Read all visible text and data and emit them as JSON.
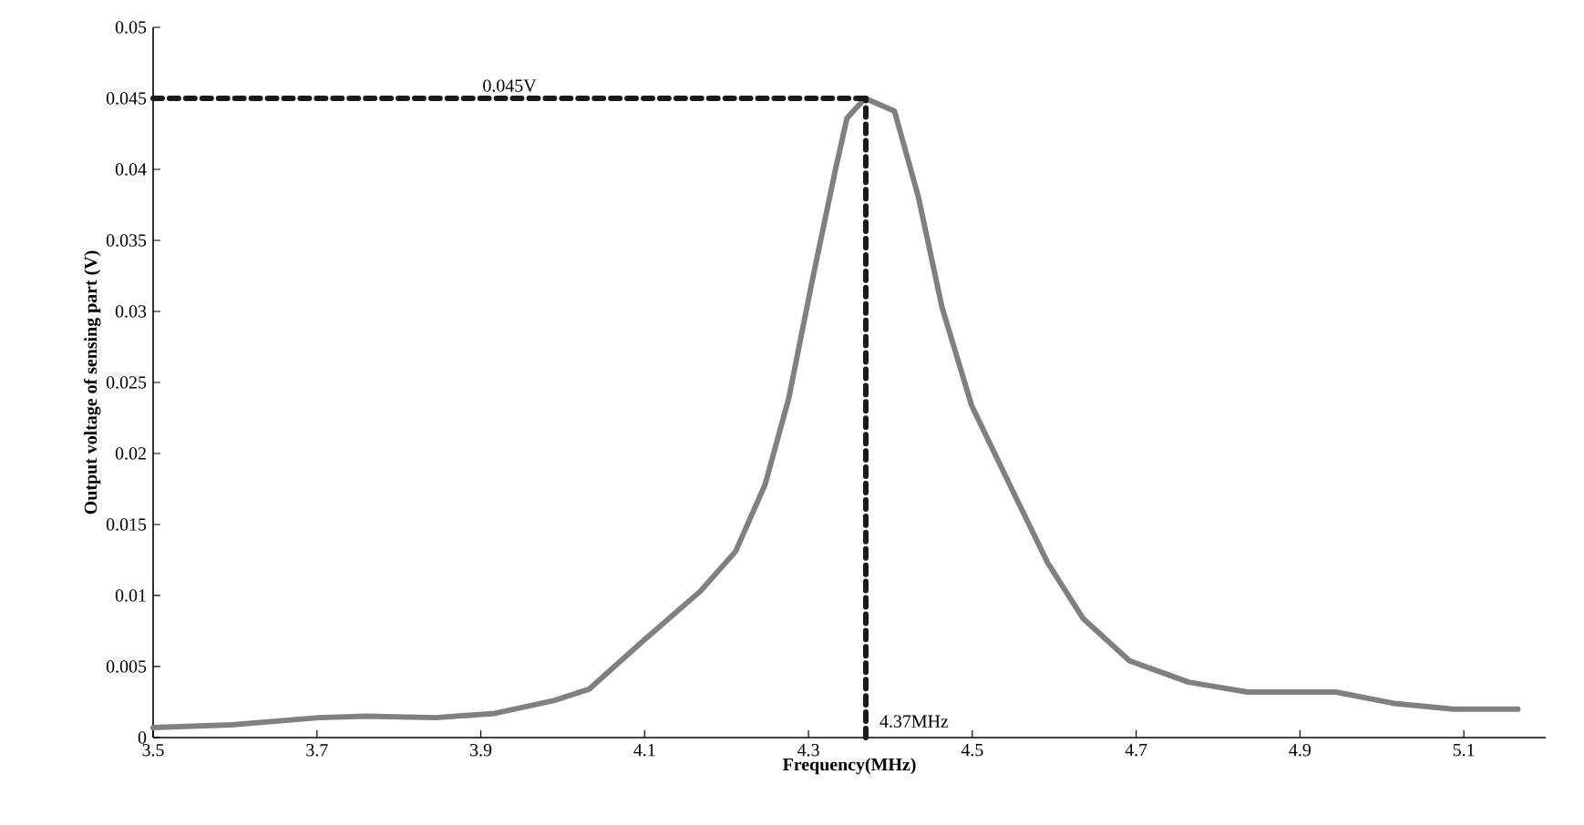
{
  "chart_data": {
    "type": "line",
    "xlabel": "Frequency(MHz)",
    "ylabel": "Output voltage of sensing part (V)",
    "xlim": [
      3.5,
      5.2
    ],
    "xticks": [
      3.5,
      3.7,
      3.9,
      4.1,
      4.3,
      4.5,
      4.7,
      4.9,
      5.1
    ],
    "ylim": [
      0,
      0.05
    ],
    "yticks": [
      0,
      0.005,
      0.01,
      0.015,
      0.02,
      0.025,
      0.03,
      0.035,
      0.04,
      0.045,
      0.05
    ],
    "grid": false,
    "marker": "none",
    "line_style": "solid",
    "x": [
      3.5,
      3.595,
      3.702,
      3.76,
      3.845,
      3.917,
      3.989,
      4.032,
      4.096,
      4.168,
      4.211,
      4.247,
      4.276,
      4.304,
      4.333,
      4.347,
      4.369,
      4.405,
      4.434,
      4.463,
      4.499,
      4.549,
      4.592,
      4.635,
      4.692,
      4.764,
      4.836,
      4.944,
      5.015,
      5.087,
      5.166
    ],
    "series": [
      {
        "color": "#808080",
        "values": [
          0.0007,
          0.0009,
          0.0014,
          0.0015,
          0.0014,
          0.0017,
          0.0026,
          0.0034,
          0.0067,
          0.0103,
          0.0131,
          0.0178,
          0.0239,
          0.032,
          0.04,
          0.0436,
          0.045,
          0.0441,
          0.0381,
          0.0303,
          0.0234,
          0.0174,
          0.0123,
          0.0084,
          0.0054,
          0.0039,
          0.0032,
          0.0032,
          0.0024,
          0.002,
          0.002
        ]
      }
    ],
    "ref_lines": [
      {
        "axis": "y",
        "value": 0.045,
        "label": "0.045V",
        "color": "#1a1a1a",
        "line_style": "dashed"
      },
      {
        "axis": "x",
        "value": 4.37,
        "label": "4.37MHz",
        "color": "#1a1a1a",
        "line_style": "dashed"
      }
    ]
  }
}
